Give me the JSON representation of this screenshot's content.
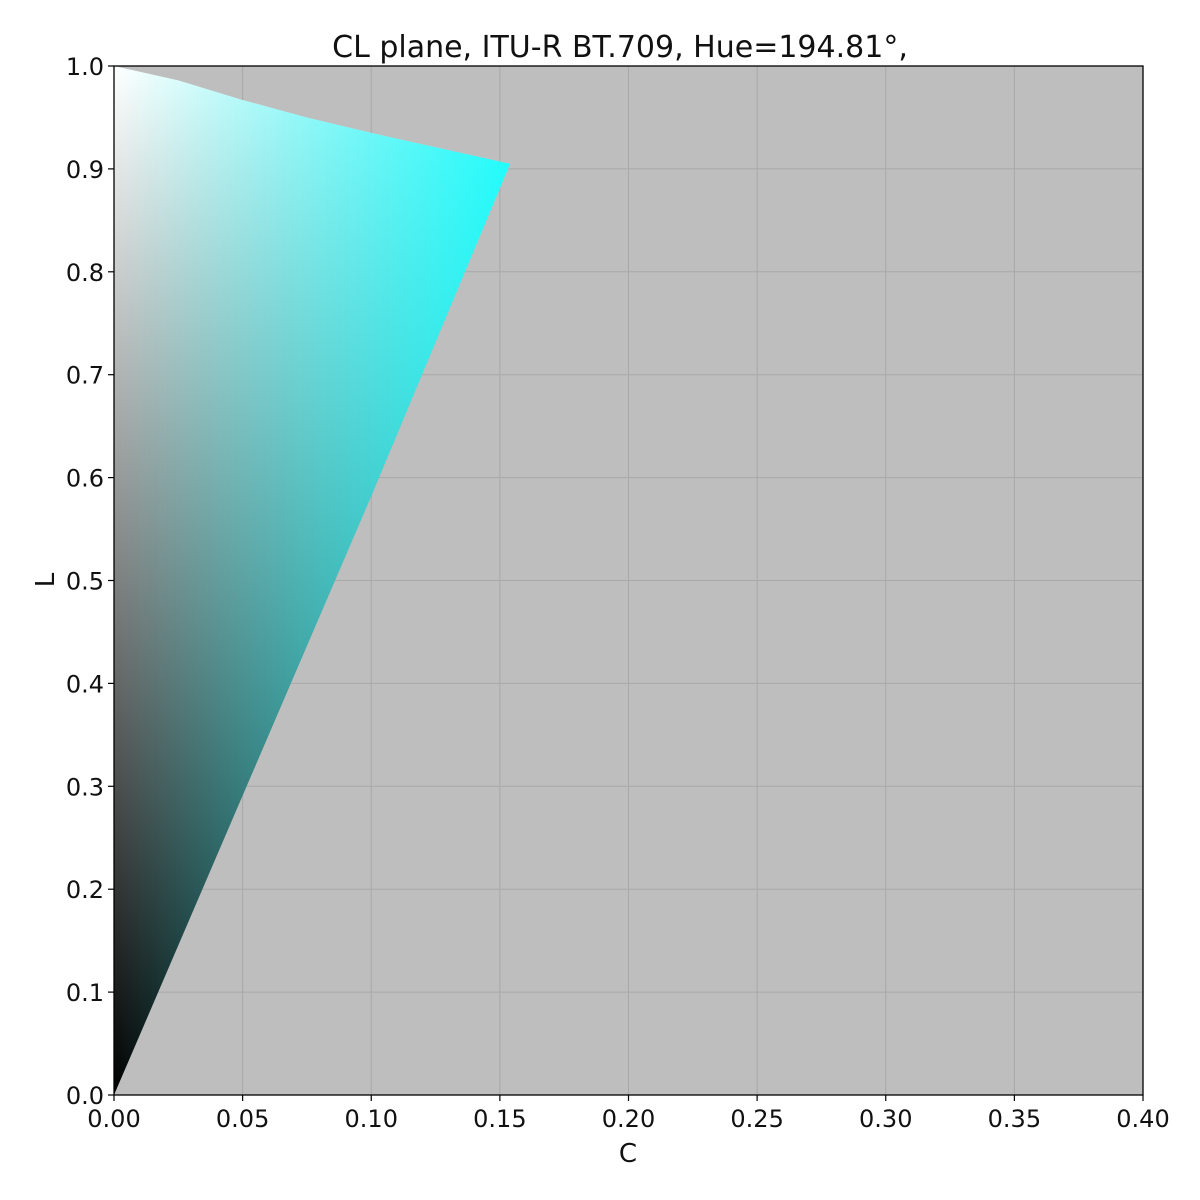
{
  "chart_data": {
    "type": "area",
    "title": "CL plane,  ITU-R BT.709,  Hue=194.81°,",
    "xlabel": "C",
    "ylabel": "L",
    "xlim": [
      0.0,
      0.4
    ],
    "ylim": [
      0.0,
      1.0
    ],
    "x_ticks": [
      "0.00",
      "0.05",
      "0.10",
      "0.15",
      "0.20",
      "0.25",
      "0.30",
      "0.35",
      "0.40"
    ],
    "y_ticks": [
      "0.0",
      "0.1",
      "0.2",
      "0.3",
      "0.4",
      "0.5",
      "0.6",
      "0.7",
      "0.8",
      "0.9",
      "1.0"
    ],
    "grid": true,
    "gamut_boundary": {
      "x": [
        0.0,
        0.025,
        0.05,
        0.075,
        0.1,
        0.125,
        0.154,
        0.1,
        0.05,
        0.0
      ],
      "y": [
        1.0,
        0.986,
        0.967,
        0.95,
        0.935,
        0.921,
        0.905,
        0.582,
        0.291,
        0.0
      ]
    },
    "cusp": {
      "c": 0.154,
      "l": 0.905
    },
    "colors": {
      "background": "#bebebe",
      "cusp_color": "#00ffff",
      "white": "#ffffff",
      "black": "#000000",
      "grid": "#a8a8a8"
    }
  }
}
